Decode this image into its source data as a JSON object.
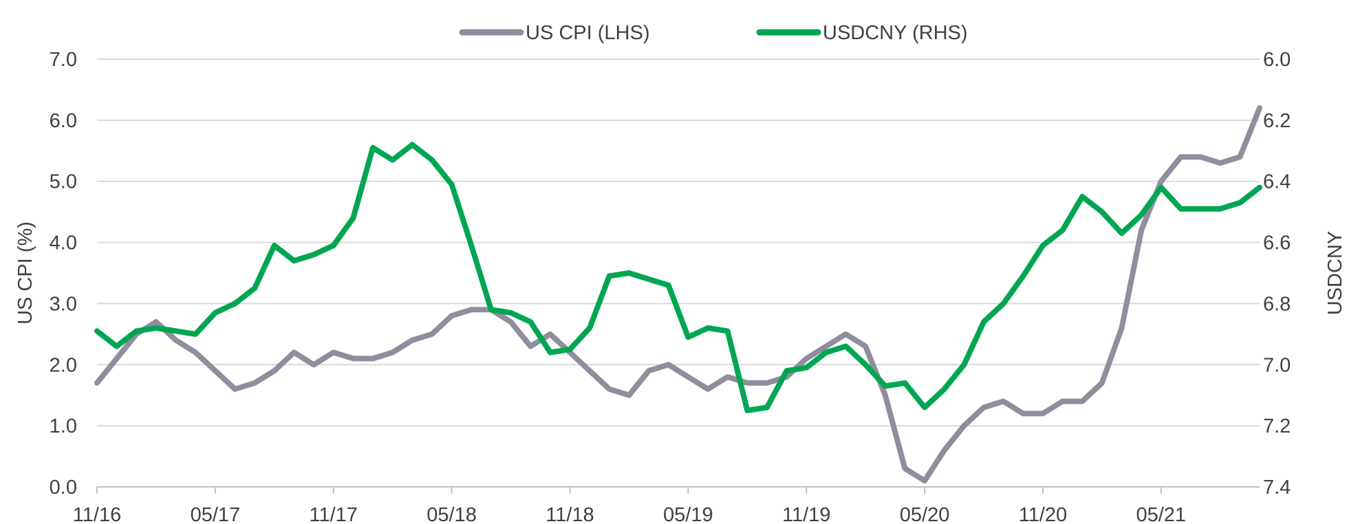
{
  "chart_data": {
    "type": "line",
    "legend": {
      "position": "top-center"
    },
    "x": [
      "11/16",
      "12/16",
      "01/17",
      "02/17",
      "03/17",
      "04/17",
      "05/17",
      "06/17",
      "07/17",
      "08/17",
      "09/17",
      "10/17",
      "11/17",
      "12/17",
      "01/18",
      "02/18",
      "03/18",
      "04/18",
      "05/18",
      "06/18",
      "07/18",
      "08/18",
      "09/18",
      "10/18",
      "11/18",
      "12/18",
      "01/19",
      "02/19",
      "03/19",
      "04/19",
      "05/19",
      "06/19",
      "07/19",
      "08/19",
      "09/19",
      "10/19",
      "11/19",
      "12/19",
      "01/20",
      "02/20",
      "03/20",
      "04/20",
      "05/20",
      "06/20",
      "07/20",
      "08/20",
      "09/20",
      "10/20",
      "11/20",
      "12/20",
      "01/21",
      "02/21",
      "03/21",
      "04/21",
      "05/21",
      "06/21",
      "07/21",
      "08/21",
      "09/21",
      "10/21"
    ],
    "tick_labels": [
      "11/16",
      "05/17",
      "11/17",
      "05/18",
      "11/18",
      "05/19",
      "11/19",
      "05/20",
      "11/20",
      "05/21"
    ],
    "left_axis": {
      "label": "US CPI (%)",
      "min": 0,
      "max": 7,
      "ticks": [
        "0.0",
        "1.0",
        "2.0",
        "3.0",
        "4.0",
        "5.0",
        "6.0",
        "7.0"
      ]
    },
    "right_axis": {
      "label": "USDCNY",
      "min": 6.0,
      "max": 7.4,
      "inverted": true,
      "ticks": [
        "6.0",
        "6.2",
        "6.4",
        "6.6",
        "6.8",
        "7.0",
        "7.2",
        "7.4"
      ]
    },
    "grid": true,
    "series": [
      {
        "name": "US CPI (LHS)",
        "axis": "left",
        "color": "#8e8e9e",
        "values": [
          1.7,
          2.1,
          2.5,
          2.7,
          2.4,
          2.2,
          1.9,
          1.6,
          1.7,
          1.9,
          2.2,
          2.0,
          2.2,
          2.1,
          2.1,
          2.2,
          2.4,
          2.5,
          2.8,
          2.9,
          2.9,
          2.7,
          2.3,
          2.5,
          2.2,
          1.9,
          1.6,
          1.5,
          1.9,
          2.0,
          1.8,
          1.6,
          1.8,
          1.7,
          1.7,
          1.8,
          2.1,
          2.3,
          2.5,
          2.3,
          1.5,
          0.3,
          0.1,
          0.6,
          1.0,
          1.3,
          1.4,
          1.2,
          1.2,
          1.4,
          1.4,
          1.7,
          2.6,
          4.2,
          5.0,
          5.4,
          5.4,
          5.3,
          5.4,
          6.2
        ]
      },
      {
        "name": "USDCNY (RHS)",
        "axis": "right",
        "color": "#00a651",
        "values": [
          6.89,
          6.94,
          6.89,
          6.88,
          6.89,
          6.9,
          6.83,
          6.8,
          6.75,
          6.61,
          6.66,
          6.64,
          6.61,
          6.52,
          6.29,
          6.33,
          6.28,
          6.33,
          6.41,
          6.61,
          6.82,
          6.83,
          6.86,
          6.96,
          6.95,
          6.88,
          6.71,
          6.7,
          6.72,
          6.74,
          6.91,
          6.88,
          6.89,
          7.15,
          7.14,
          7.02,
          7.01,
          6.96,
          6.94,
          7.0,
          7.07,
          7.06,
          7.14,
          7.08,
          7.0,
          6.86,
          6.8,
          6.71,
          6.61,
          6.56,
          6.45,
          6.5,
          6.57,
          6.51,
          6.42,
          6.49,
          6.49,
          6.49,
          6.47,
          6.42
        ]
      }
    ]
  }
}
